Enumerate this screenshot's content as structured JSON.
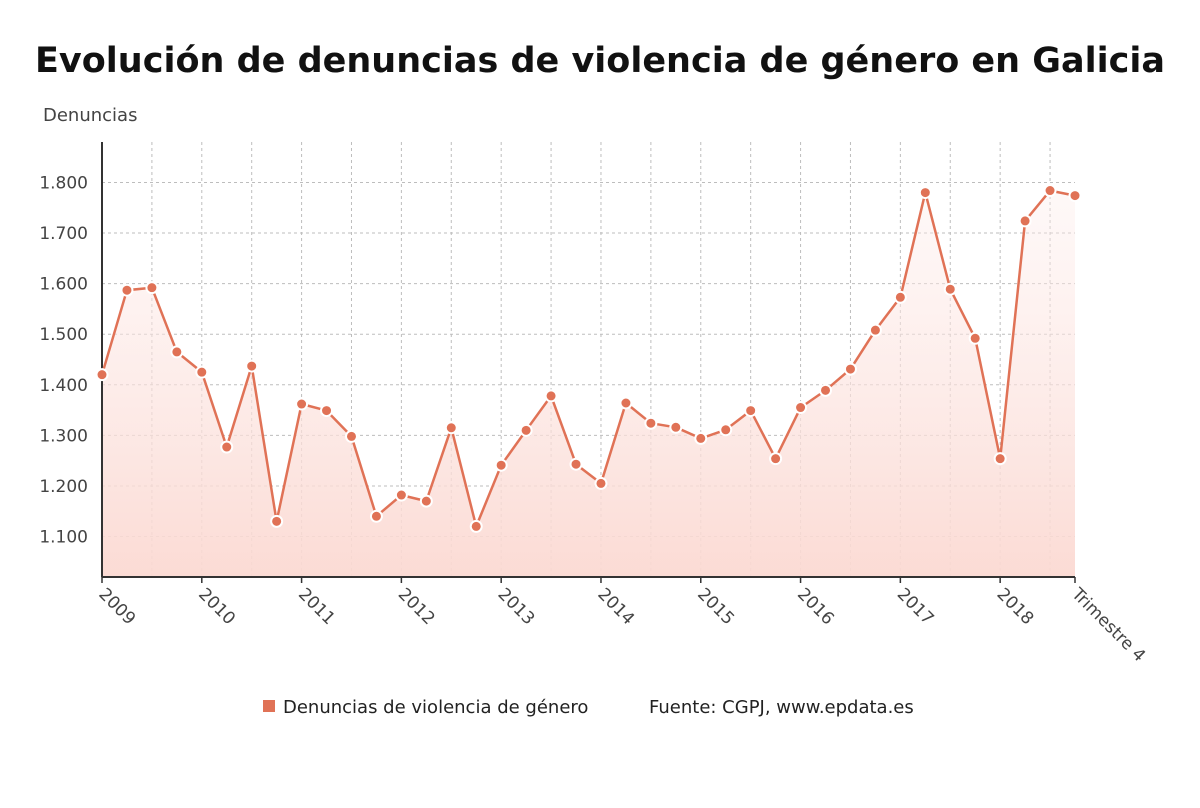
{
  "chart_data": {
    "type": "line",
    "title": "Evolución de denuncias de violencia de género en Galicia",
    "ylabel": "Denuncias",
    "ylim": [
      1020,
      1880
    ],
    "yticks": [
      1100,
      1200,
      1300,
      1400,
      1500,
      1600,
      1700,
      1800
    ],
    "ytick_labels": [
      "1.100",
      "1.200",
      "1.300",
      "1.400",
      "1.500",
      "1.600",
      "1.700",
      "1.800"
    ],
    "x_labels": [
      "2009",
      "2010",
      "2011",
      "2012",
      "2013",
      "2014",
      "2015",
      "2016",
      "2017",
      "2018",
      "Trimestre 4"
    ],
    "grid": true,
    "series": [
      {
        "name": "Denuncias de violencia de género",
        "color": "#e07256",
        "values": [
          1420,
          1587,
          1592,
          1465,
          1425,
          1277,
          1437,
          1130,
          1362,
          1349,
          1298,
          1140,
          1182,
          1170,
          1315,
          1120,
          1241,
          1310,
          1378,
          1243,
          1205,
          1364,
          1324,
          1316,
          1294,
          1311,
          1349,
          1254,
          1355,
          1389,
          1431,
          1508,
          1573,
          1780,
          1589,
          1492,
          1254,
          1724,
          1784,
          1774
        ]
      }
    ],
    "legend_position": "bottom",
    "source": "Fuente: CGPJ, www.epdata.es"
  }
}
